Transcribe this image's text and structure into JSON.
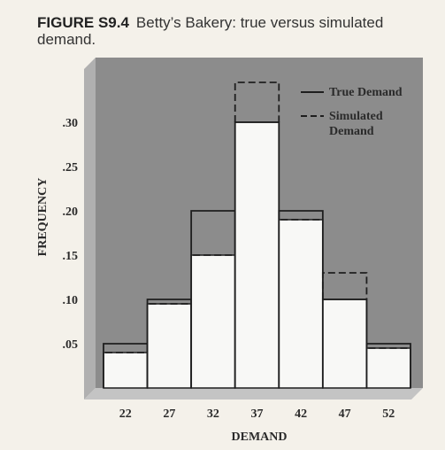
{
  "caption": {
    "figure_number": "FIGURE S9.4",
    "text": "Betty’s Bakery: true versus simulated demand."
  },
  "chart_data": {
    "type": "bar",
    "xlabel": "DEMAND",
    "ylabel": "FREQUENCY",
    "categories": [
      "22",
      "27",
      "32",
      "37",
      "42",
      "47",
      "52"
    ],
    "y_tick_labels": [
      ".05",
      ".10",
      ".15",
      ".20",
      ".25",
      ".30"
    ],
    "y_ticks": [
      0.05,
      0.1,
      0.15,
      0.2,
      0.25,
      0.3
    ],
    "ylim": [
      0,
      0.36
    ],
    "series": [
      {
        "name": "True Demand",
        "style": "solid",
        "values": [
          0.05,
          0.1,
          0.2,
          0.3,
          0.2,
          0.1,
          0.05
        ]
      },
      {
        "name": "Simulated Demand",
        "style": "dashed",
        "values": [
          0.04,
          0.095,
          0.15,
          0.345,
          0.19,
          0.13,
          0.045
        ]
      }
    ],
    "legend": {
      "position": "top-right",
      "items": [
        {
          "label_lines": [
            "True Demand"
          ],
          "style": "solid"
        },
        {
          "label_lines": [
            "Simulated",
            "Demand"
          ],
          "style": "dashed"
        }
      ]
    },
    "colors": {
      "background": "#8c8c8c",
      "bar_fill": "#f8f8f6",
      "bar_edge": "#1e1e1e"
    }
  }
}
